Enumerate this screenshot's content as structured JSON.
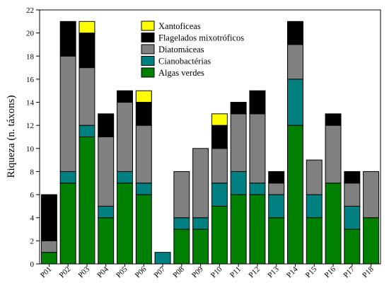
{
  "chart_data": {
    "type": "bar",
    "stacked": true,
    "title": "",
    "xlabel": "",
    "ylabel": "Riqueza (n. táxons)",
    "ylim": [
      0,
      22
    ],
    "yticks": [
      0,
      2,
      4,
      6,
      8,
      10,
      12,
      14,
      16,
      18,
      20,
      22
    ],
    "grid": false,
    "legend_position": "top-center",
    "categories": [
      "P01",
      "P02",
      "P03",
      "P04",
      "P05",
      "P06",
      "P07",
      "P08",
      "P09",
      "P10",
      "P11",
      "P12",
      "P13",
      "P14",
      "P15",
      "P16",
      "P17",
      "P18"
    ],
    "series": [
      {
        "name": "Algas verdes",
        "color": "#008000",
        "values": [
          1,
          7,
          11,
          4,
          7,
          6,
          0,
          3,
          3,
          5,
          6,
          6,
          4,
          12,
          4,
          7,
          3,
          4
        ]
      },
      {
        "name": "Cianobactérias",
        "color": "#008080",
        "values": [
          0,
          1,
          1,
          1,
          1,
          1,
          1,
          1,
          1,
          2,
          2,
          1,
          2,
          4,
          2,
          0,
          2,
          0
        ]
      },
      {
        "name": "Diatomáceas",
        "color": "#808080",
        "values": [
          1,
          10,
          5,
          6,
          6,
          5,
          0,
          4,
          6,
          3,
          5,
          6,
          1,
          3,
          3,
          5,
          2,
          4
        ]
      },
      {
        "name": "Flagelados mixotróficos",
        "color": "#000000",
        "values": [
          4,
          3,
          3,
          2,
          1,
          2,
          0,
          0,
          0,
          2,
          1,
          2,
          1,
          2,
          0,
          1,
          1,
          0
        ]
      },
      {
        "name": "Xantoficeas",
        "color": "#ffff00",
        "values": [
          0,
          0,
          1,
          0,
          0,
          1,
          0,
          0,
          0,
          1,
          0,
          0,
          0,
          0,
          0,
          0,
          0,
          0
        ]
      }
    ],
    "legend_order": [
      "Xantoficeas",
      "Flagelados mixotróficos",
      "Diatomáceas",
      "Cianobactérias",
      "Algas verdes"
    ]
  }
}
